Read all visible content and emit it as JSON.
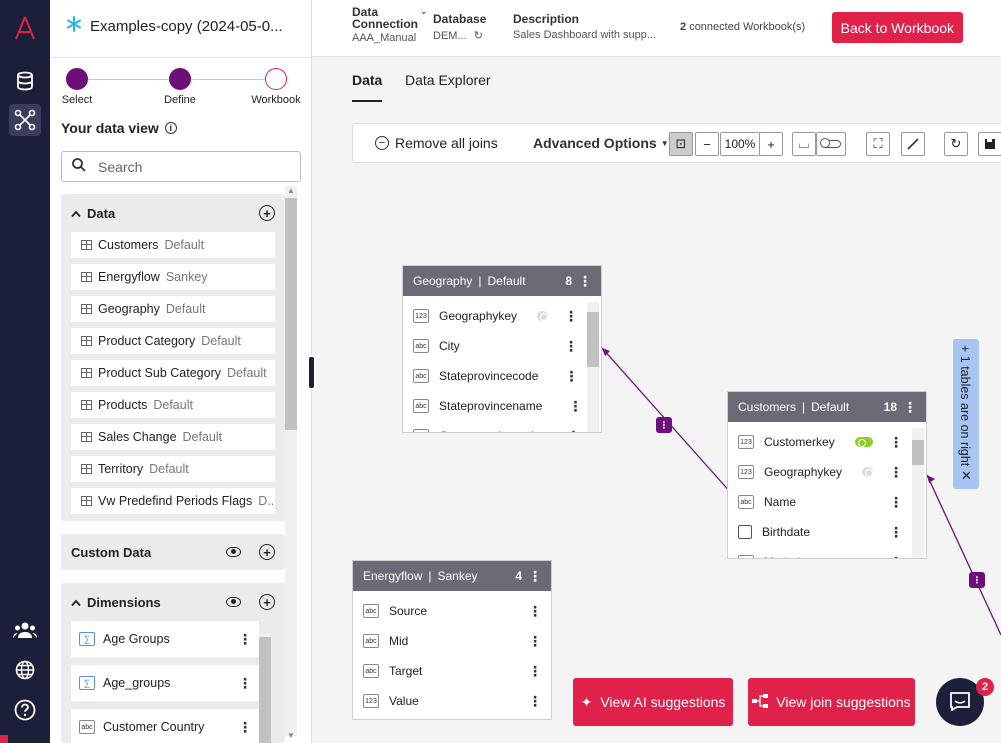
{
  "rail": {
    "icons": [
      "brand-logo-icon",
      "database-icon",
      "schema-icon",
      "users-icon",
      "globe-icon",
      "help-icon"
    ]
  },
  "datasource": {
    "title": "Examples-copy (2024-05-0..."
  },
  "stepper": {
    "steps": [
      "Select",
      "Define",
      "Workbook"
    ]
  },
  "data_view": {
    "title": "Your data view",
    "search_placeholder": "Search"
  },
  "data_section": {
    "title": "Data",
    "items": [
      {
        "name": "Customers",
        "tag": "Default"
      },
      {
        "name": "Energyflow",
        "tag": "Sankey"
      },
      {
        "name": "Geography",
        "tag": "Default"
      },
      {
        "name": "Product Category",
        "tag": "Default"
      },
      {
        "name": "Product Sub Category",
        "tag": "Default"
      },
      {
        "name": "Products",
        "tag": "Default"
      },
      {
        "name": "Sales Change",
        "tag": "Default"
      },
      {
        "name": "Territory",
        "tag": "Default"
      },
      {
        "name": "Vw Predefind Periods Flags",
        "tag": "D..."
      }
    ]
  },
  "custom_data": {
    "title": "Custom Data"
  },
  "dimensions": {
    "title": "Dimensions",
    "items": [
      {
        "name": "Age Groups",
        "type": "calc"
      },
      {
        "name": "Age_groups",
        "type": "calc"
      },
      {
        "name": "Customer Country",
        "type": "abc"
      }
    ]
  },
  "topbar": {
    "connection_label": "Data Connection",
    "connection_value": "AAA_Manual",
    "database_label": "Database",
    "database_value": "DEM...",
    "description_label": "Description",
    "description_value": "Sales Dashboard with supp...",
    "connected_count": "2",
    "connected_text": "connected Workbook(s)",
    "back_button": "Back to Workbook"
  },
  "tabs": [
    "Data",
    "Data Explorer"
  ],
  "toolbar": {
    "remove_joins": "Remove all joins",
    "advanced": "Advanced Options",
    "zoom": "100%"
  },
  "cards": {
    "geography": {
      "title": "Geography",
      "tag": "Default",
      "count": "8",
      "fields": [
        {
          "type": "123",
          "name": "Geographykey",
          "key": "grey"
        },
        {
          "type": "abc",
          "name": "City"
        },
        {
          "type": "abc",
          "name": "Stateprovincecode"
        },
        {
          "type": "abc",
          "name": "Stateprovincename"
        },
        {
          "type": "abc",
          "name": "Countryregioncode"
        }
      ]
    },
    "customers": {
      "title": "Customers",
      "tag": "Default",
      "count": "18",
      "fields": [
        {
          "type": "123",
          "name": "Customerkey",
          "key": "green"
        },
        {
          "type": "123",
          "name": "Geographykey",
          "key": "grey"
        },
        {
          "type": "abc",
          "name": "Name"
        },
        {
          "type": "date",
          "name": "Birthdate"
        },
        {
          "type": "abc",
          "name": "Maritalstatus"
        }
      ]
    },
    "energyflow": {
      "title": "Energyflow",
      "tag": "Sankey",
      "count": "4",
      "fields": [
        {
          "type": "abc",
          "name": "Source"
        },
        {
          "type": "abc",
          "name": "Mid"
        },
        {
          "type": "abc",
          "name": "Target"
        },
        {
          "type": "123",
          "name": "Value"
        }
      ]
    }
  },
  "right_tab": "+ 1 tables are on right",
  "buttons": {
    "ai": "View AI suggestions",
    "join": "View join suggestions"
  },
  "chat": {
    "badge": "2"
  },
  "colors": {
    "accent": "#e0214a",
    "purple": "#6d0f7a",
    "rail": "#1c1f3a",
    "card_header": "#6b6b78"
  }
}
